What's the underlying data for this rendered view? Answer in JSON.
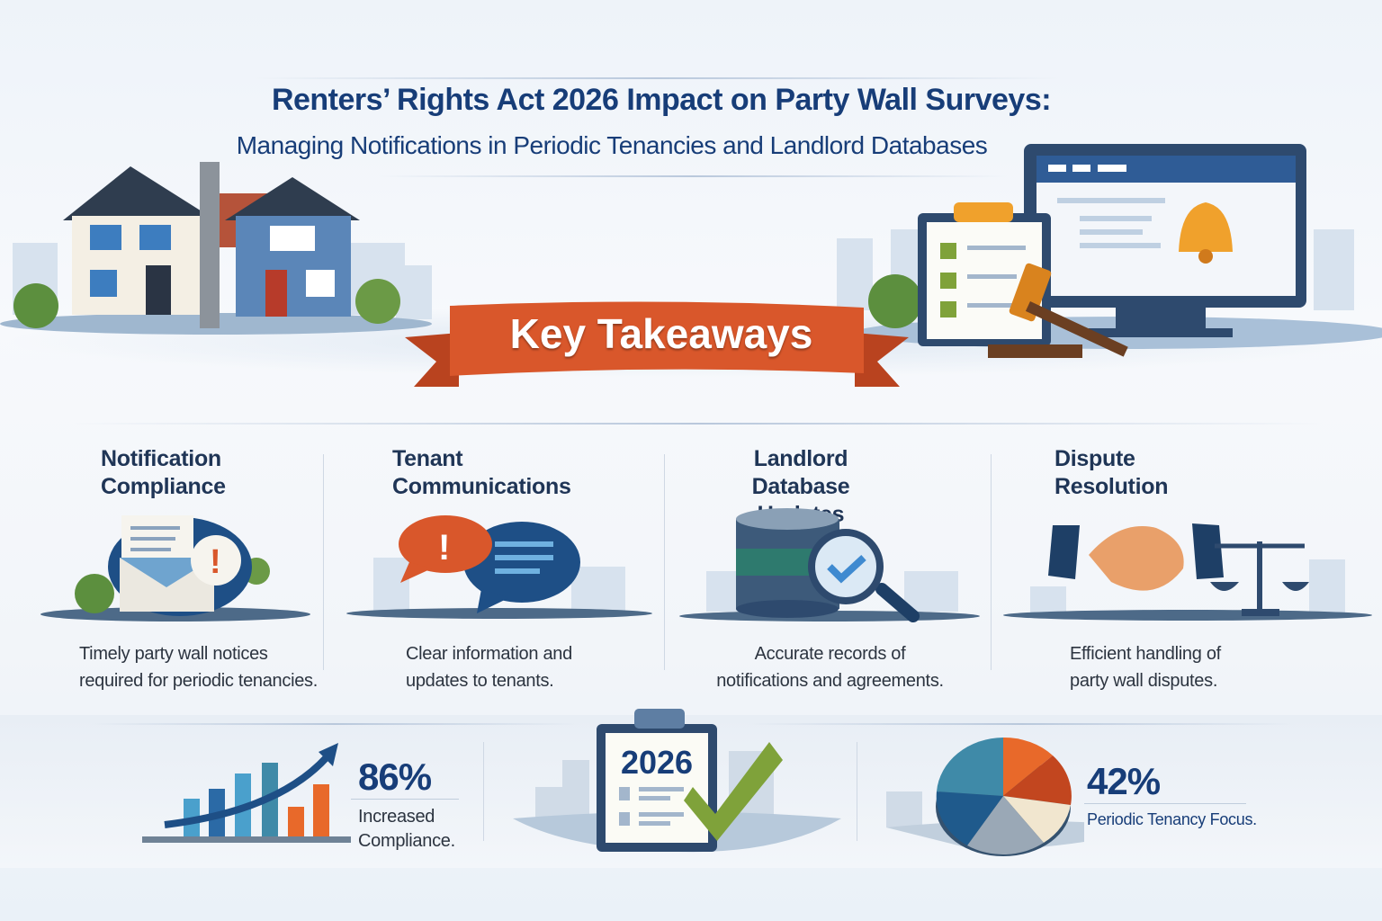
{
  "header": {
    "title": "Renters’ Rights Act 2026 Impact on Party Wall Surveys:",
    "subtitle": "Managing Notifications in Periodic Tenancies and Landlord Databases"
  },
  "banner": {
    "label": "Key Takeaways",
    "color": "#d9572b"
  },
  "takeaways": [
    {
      "heading_line1": "Notification",
      "heading_line2": "Compliance",
      "icon": "envelope-alert-icon",
      "desc_line1": "Timely party wall notices",
      "desc_line2": "required for periodic tenancies."
    },
    {
      "heading_line1": "Tenant",
      "heading_line2": "Communications",
      "icon": "speech-bubbles-icon",
      "desc_line1": "Clear information and",
      "desc_line2": "updates to tenants."
    },
    {
      "heading_line1": "Landlord Database",
      "heading_line2": "Updates",
      "icon": "database-search-icon",
      "desc_line1": "Accurate records of",
      "desc_line2": "notifications and agreements."
    },
    {
      "heading_line1": "Dispute",
      "heading_line2": "Resolution",
      "icon": "handshake-scales-icon",
      "desc_line1": "Efficient handling of",
      "desc_line2": "party wall disputes."
    }
  ],
  "stats": {
    "compliance": {
      "value": "86%",
      "label_line1": "Increased",
      "label_line2": "Compliance.",
      "icon": "bar-chart-arrow-icon"
    },
    "year": {
      "value": "2026",
      "icon": "clipboard-check-icon"
    },
    "periodic": {
      "value": "42%",
      "label": "Periodic Tenancy Focus.",
      "icon": "pie-chart-icon"
    }
  },
  "colors": {
    "navy": "#173d78",
    "orange": "#e8692a",
    "teal": "#3f8aa8",
    "green": "#7fa23a"
  }
}
